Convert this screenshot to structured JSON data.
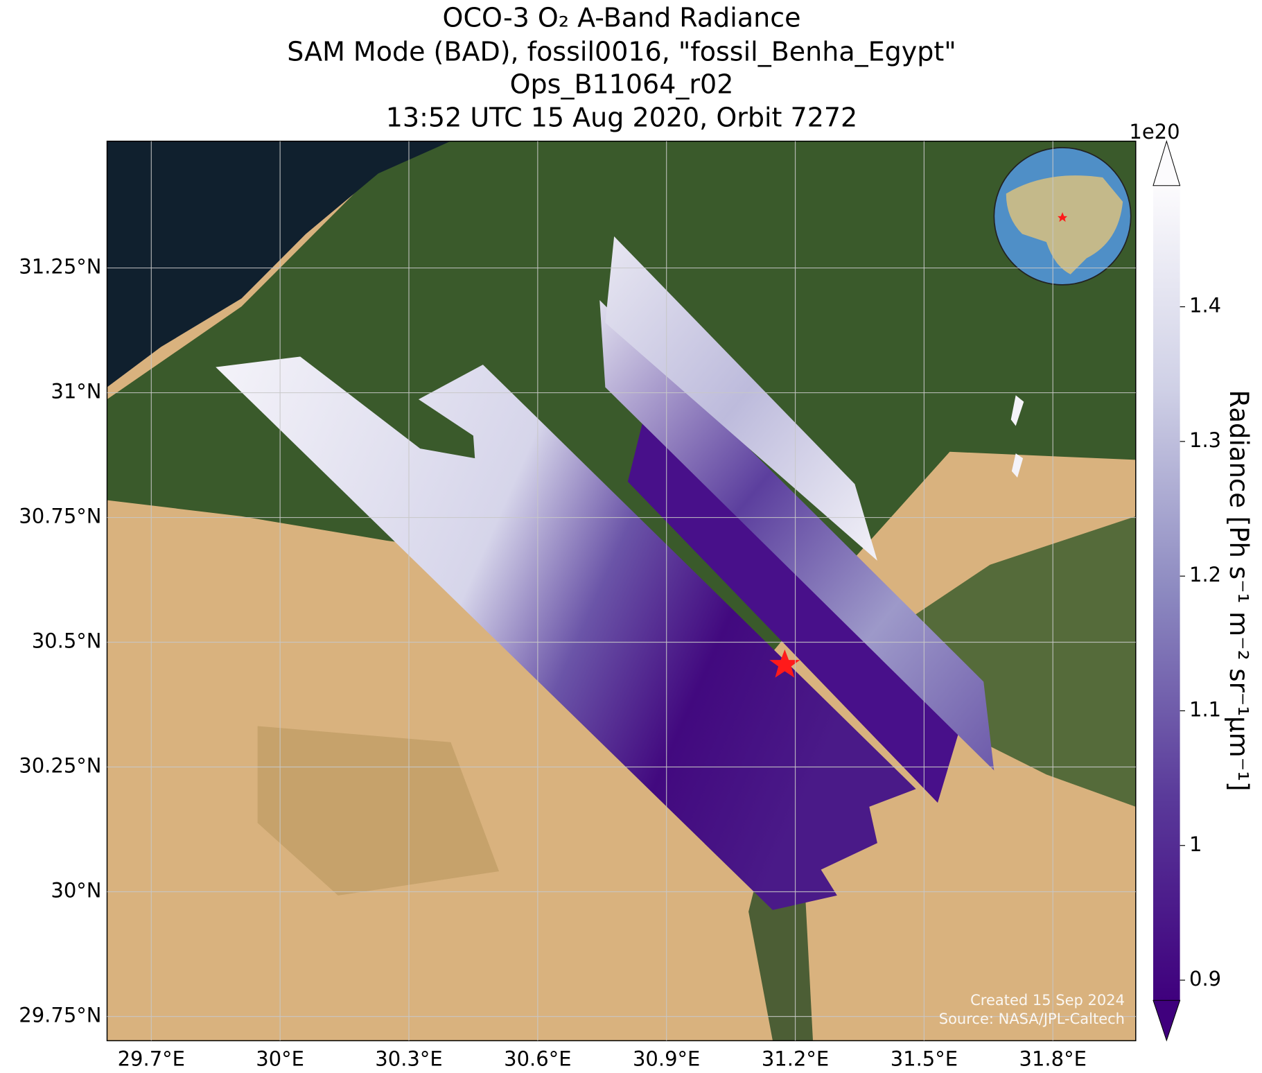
{
  "title": [
    "OCO-3 O₂ A-Band Radiance",
    "SAM Mode (BAD), fossil0016, \"fossil_Benha_Egypt\"",
    "Ops_B11064_r02",
    "13:52 UTC 15 Aug 2020, Orbit 7272"
  ],
  "map": {
    "lonlim": [
      29.597,
      31.993
    ],
    "latlim": [
      29.7015,
      31.504
    ],
    "lon_ticks": [
      {
        "value": 29.7,
        "label": "29.7°E"
      },
      {
        "value": 30.0,
        "label": "30°E"
      },
      {
        "value": 30.3,
        "label": "30.3°E"
      },
      {
        "value": 30.6,
        "label": "30.6°E"
      },
      {
        "value": 30.9,
        "label": "30.9°E"
      },
      {
        "value": 31.2,
        "label": "31.2°E"
      },
      {
        "value": 31.5,
        "label": "31.5°E"
      },
      {
        "value": 31.8,
        "label": "31.8°E"
      }
    ],
    "lat_ticks": [
      {
        "value": 29.75,
        "label": "29.75°N"
      },
      {
        "value": 30.0,
        "label": "30°N"
      },
      {
        "value": 30.25,
        "label": "30.25°N"
      },
      {
        "value": 30.5,
        "label": "30.5°N"
      },
      {
        "value": 30.75,
        "label": "30.75°N"
      },
      {
        "value": 31.0,
        "label": "31°N"
      },
      {
        "value": 31.25,
        "label": "31.25°N"
      }
    ]
  },
  "colorbar": {
    "label": "Radiance [Ph s⁻¹ m⁻² sr⁻¹μm⁻¹]",
    "offset_text": "1e20",
    "clim": [
      0.885,
      1.49
    ],
    "ticks": [
      0.9,
      1.0,
      1.1,
      1.2,
      1.3,
      1.4
    ]
  },
  "footer": [
    "Created 15 Sep 2024",
    "Source: NASA/JPL-Caltech"
  ]
}
